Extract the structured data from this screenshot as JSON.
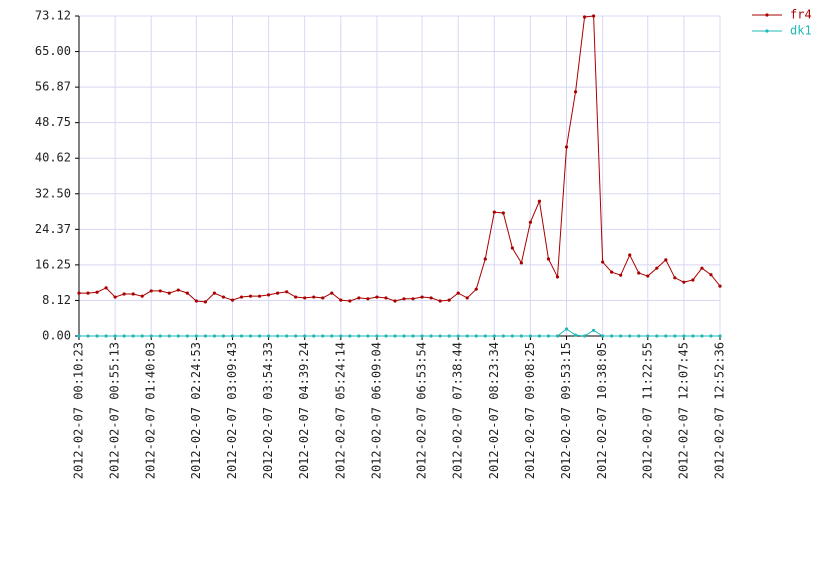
{
  "chart_data": {
    "type": "line",
    "categories": [
      "2012-02-07 00:10:23",
      null,
      null,
      null,
      "2012-02-07 00:55:13",
      null,
      null,
      null,
      "2012-02-07 01:40:03",
      null,
      null,
      null,
      null,
      "2012-02-07 02:24:53",
      null,
      null,
      null,
      "2012-02-07 03:09:43",
      null,
      null,
      null,
      "2012-02-07 03:54:33",
      null,
      null,
      null,
      "2012-02-07 04:39:24",
      null,
      null,
      null,
      "2012-02-07 05:24:14",
      null,
      null,
      null,
      "2012-02-07 06:09:04",
      null,
      null,
      null,
      null,
      "2012-02-07 06:53:54",
      null,
      null,
      null,
      "2012-02-07 07:38:44",
      null,
      null,
      null,
      "2012-02-07 08:23:34",
      null,
      null,
      null,
      "2012-02-07 09:08:25",
      null,
      null,
      null,
      "2012-02-07 09:53:15",
      null,
      null,
      null,
      "2012-02-07 10:38:05",
      null,
      null,
      null,
      null,
      "2012-02-07 11:22:55",
      null,
      null,
      null,
      "2012-02-07 12:07:45",
      null,
      null,
      null,
      "2012-02-07 12:52:36"
    ],
    "series": [
      {
        "name": "fr4",
        "color": "#aa0000",
        "values": [
          9.8,
          9.8,
          10.0,
          11.0,
          8.9,
          9.6,
          9.6,
          9.1,
          10.3,
          10.3,
          9.8,
          10.5,
          9.8,
          8.0,
          7.8,
          9.8,
          8.9,
          8.2,
          8.9,
          9.1,
          9.1,
          9.4,
          9.8,
          10.1,
          8.9,
          8.7,
          8.9,
          8.7,
          9.8,
          8.2,
          8.0,
          8.7,
          8.5,
          8.9,
          8.7,
          8.0,
          8.5,
          8.5,
          8.9,
          8.7,
          8.0,
          8.2,
          9.8,
          8.7,
          10.7,
          17.6,
          28.3,
          28.1,
          20.1,
          16.7,
          26.0,
          30.8,
          17.6,
          13.5,
          43.2,
          55.8,
          72.9,
          73.12,
          16.9,
          14.6,
          13.9,
          18.5,
          14.4,
          13.7,
          15.5,
          17.4,
          13.3,
          12.3,
          12.8,
          15.5,
          14.0,
          11.4
        ]
      },
      {
        "name": "dk1",
        "color": "#20b8b8",
        "values": [
          0,
          0,
          0,
          0,
          0,
          0,
          0,
          0,
          0,
          0,
          0,
          0,
          0,
          0,
          0,
          0,
          0,
          0,
          0,
          0,
          0,
          0,
          0,
          0,
          0,
          0,
          0,
          0,
          0,
          0,
          0,
          0,
          0,
          0,
          0,
          0,
          0,
          0,
          0,
          0,
          0,
          0,
          0,
          0,
          0,
          0,
          0,
          0,
          0,
          0,
          0,
          0,
          0,
          0,
          1.6,
          0.2,
          0,
          1.3,
          0,
          0,
          0,
          0,
          0,
          0,
          0,
          0,
          0,
          0,
          0,
          0,
          0,
          0
        ]
      }
    ],
    "ylim": [
      0,
      73.12
    ],
    "yticks": [
      {
        "value": 0,
        "label": "0.00"
      },
      8.12,
      16.25,
      24.37,
      {
        "value": 32.5,
        "label": "32.50"
      },
      40.62,
      48.75,
      56.87,
      {
        "value": 65,
        "label": "65.00"
      },
      73.12
    ],
    "grid": true,
    "legend": "top-right"
  }
}
